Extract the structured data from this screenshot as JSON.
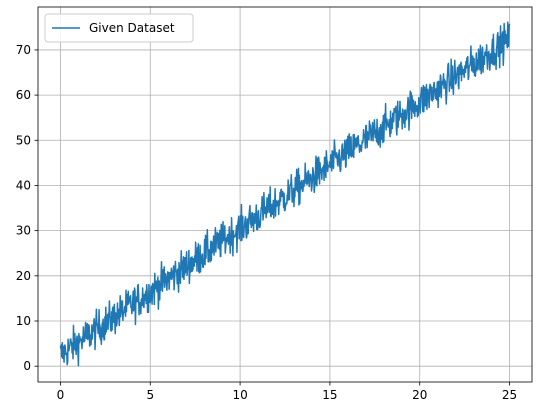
{
  "chart_data": {
    "type": "line",
    "title": "",
    "xlabel": "",
    "ylabel": "",
    "xlim": [
      -1.25,
      26.25
    ],
    "ylim": [
      -3.5,
      79.5
    ],
    "xticks": [
      0,
      5,
      10,
      15,
      20,
      25
    ],
    "yticks": [
      0,
      10,
      20,
      30,
      40,
      50,
      60,
      70
    ],
    "grid": true,
    "legend": {
      "placement": "top-left",
      "entries": [
        "Given Dataset"
      ]
    },
    "series": [
      {
        "name": "Given Dataset",
        "color": "#1f77b4",
        "x_range": [
          0,
          25
        ],
        "trend": {
          "slope": 2.8,
          "intercept": 2.5
        },
        "noise_amplitude": 2.0,
        "samples": [
          [
            0,
            2.5
          ],
          [
            1,
            5.3
          ],
          [
            2,
            8.1
          ],
          [
            3,
            10.9
          ],
          [
            4,
            13.7
          ],
          [
            5,
            16.5
          ],
          [
            6,
            19.3
          ],
          [
            7,
            22.1
          ],
          [
            8,
            24.9
          ],
          [
            9,
            27.7
          ],
          [
            10,
            30.5
          ],
          [
            11,
            33.3
          ],
          [
            12,
            36.1
          ],
          [
            13,
            38.9
          ],
          [
            14,
            41.7
          ],
          [
            15,
            44.5
          ],
          [
            16,
            47.3
          ],
          [
            17,
            50.1
          ],
          [
            18,
            52.9
          ],
          [
            19,
            55.7
          ],
          [
            20,
            58.5
          ],
          [
            21,
            61.3
          ],
          [
            22,
            64.1
          ],
          [
            23,
            66.9
          ],
          [
            24,
            69.7
          ],
          [
            25,
            72.5
          ]
        ]
      }
    ]
  },
  "colors": {
    "axes": "#000000",
    "grid": "#b0b0b0",
    "series": "#1f77b4",
    "legend_border": "#cccccc"
  }
}
